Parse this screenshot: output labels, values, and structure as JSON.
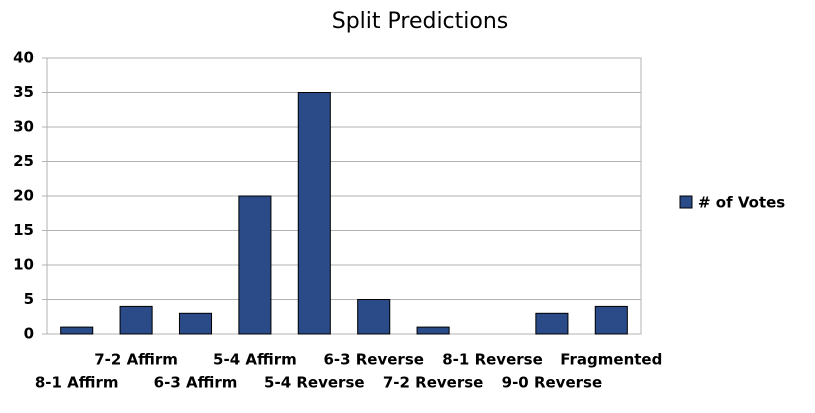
{
  "chart_data": {
    "type": "bar",
    "title": "Split Predictions",
    "categories": [
      "8-1 Affirm",
      "7-2 Affirm",
      "6-3 Affirm",
      "5-4 Affirm",
      "5-4 Reverse",
      "6-3 Reverse",
      "7-2 Reverse",
      "8-1 Reverse",
      "9-0 Reverse",
      "Fragmented"
    ],
    "series": [
      {
        "name": "# of Votes",
        "color": "#2a4a88",
        "values": [
          1,
          4,
          3,
          20,
          35,
          5,
          1,
          0,
          3,
          4
        ]
      }
    ],
    "ylim": [
      0,
      40
    ],
    "yticks": [
      0,
      5,
      10,
      15,
      20,
      25,
      30,
      35,
      40
    ],
    "grid": true,
    "legend": "right"
  }
}
